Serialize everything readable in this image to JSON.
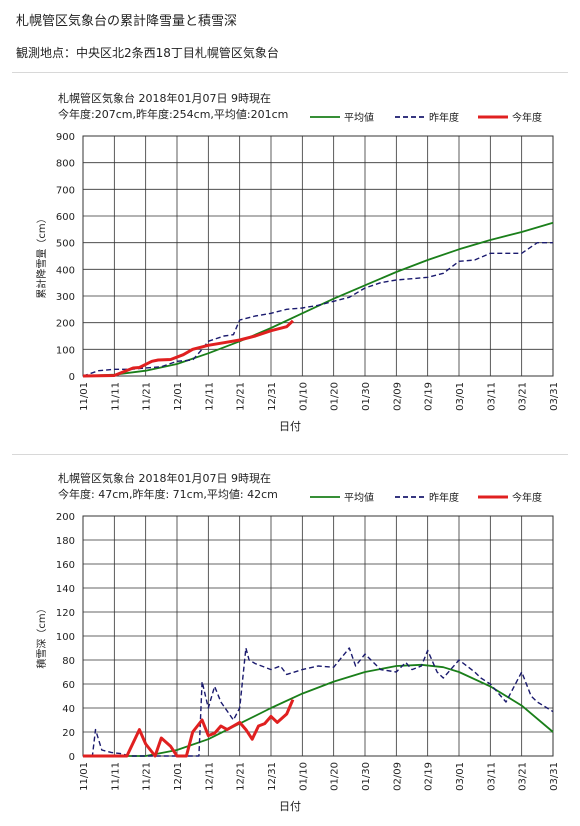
{
  "page": {
    "title": "札幌管区気象台の累計降雪量と積雪深",
    "subtitle": "観測地点：中央区北2条西18丁目札幌管区気象台"
  },
  "chart_data": [
    {
      "type": "line",
      "station_line": "札幌管区気象台 2018年01月07日 9時現在",
      "summary_line": "今年度:207cm,昨年度:254cm,平均値:201cm",
      "xlabel": "日付",
      "ylabel": "累計降雪量（cm）",
      "ylim": [
        0,
        900
      ],
      "yticks": [
        "0",
        "100",
        "200",
        "300",
        "400",
        "500",
        "600",
        "700",
        "800",
        "900"
      ],
      "xticks": [
        "11/01",
        "11/11",
        "11/21",
        "12/01",
        "12/11",
        "12/21",
        "12/31",
        "01/10",
        "01/20",
        "01/30",
        "02/09",
        "02/19",
        "03/01",
        "03/11",
        "03/21",
        "03/31"
      ],
      "grid": true,
      "legend": "top-right",
      "series": [
        {
          "name": "平均値",
          "color": "#1a7f1a",
          "style": "solid",
          "x": [
            0,
            10,
            20,
            30,
            40,
            50,
            60,
            70,
            80,
            90,
            100,
            110,
            120,
            130,
            140,
            150
          ],
          "values": [
            0,
            5,
            20,
            45,
            85,
            130,
            180,
            235,
            290,
            340,
            390,
            435,
            475,
            510,
            540,
            575
          ]
        },
        {
          "name": "昨年度",
          "color": "#1a1a6e",
          "style": "dashed",
          "x": [
            0,
            5,
            10,
            15,
            20,
            25,
            30,
            35,
            38,
            40,
            45,
            48,
            50,
            55,
            60,
            65,
            70,
            75,
            80,
            85,
            90,
            95,
            100,
            105,
            110,
            115,
            120,
            125,
            130,
            135,
            140,
            145,
            150
          ],
          "values": [
            0,
            20,
            25,
            25,
            30,
            35,
            55,
            60,
            100,
            130,
            150,
            155,
            210,
            225,
            235,
            250,
            255,
            265,
            280,
            295,
            330,
            350,
            360,
            365,
            370,
            385,
            430,
            435,
            460,
            460,
            460,
            500,
            500
          ]
        },
        {
          "name": "今年度",
          "color": "#e02020",
          "style": "solid",
          "x": [
            0,
            10,
            16,
            18,
            22,
            24,
            28,
            32,
            35,
            40,
            45,
            50,
            55,
            60,
            65,
            67
          ],
          "values": [
            0,
            2,
            30,
            32,
            55,
            60,
            62,
            80,
            100,
            115,
            125,
            135,
            150,
            170,
            185,
            207
          ]
        }
      ]
    },
    {
      "type": "line",
      "station_line": "札幌管区気象台 2018年01月07日 9時現在",
      "summary_line": "今年度: 47cm,昨年度: 71cm,平均値: 42cm",
      "xlabel": "日付",
      "ylabel": "積雪深（cm）",
      "ylim": [
        0,
        200
      ],
      "yticks": [
        "0",
        "20",
        "40",
        "60",
        "80",
        "100",
        "120",
        "140",
        "160",
        "180",
        "200"
      ],
      "xticks": [
        "11/01",
        "11/11",
        "11/21",
        "12/01",
        "12/11",
        "12/21",
        "12/31",
        "01/10",
        "01/20",
        "01/30",
        "02/09",
        "02/19",
        "03/01",
        "03/11",
        "03/21",
        "03/31"
      ],
      "grid": true,
      "legend": "top-right",
      "series": [
        {
          "name": "平均値",
          "color": "#1a7f1a",
          "style": "solid",
          "x": [
            0,
            20,
            30,
            40,
            50,
            60,
            70,
            80,
            90,
            100,
            108,
            115,
            120,
            130,
            140,
            150
          ],
          "values": [
            0,
            0,
            5,
            14,
            27,
            40,
            52,
            62,
            70,
            75,
            76,
            74,
            70,
            58,
            42,
            20
          ]
        },
        {
          "name": "昨年度",
          "color": "#1a1a6e",
          "style": "dashed",
          "x": [
            0,
            3,
            4,
            6,
            9,
            12,
            15,
            20,
            30,
            35,
            37,
            38,
            40,
            42,
            44,
            48,
            50,
            52,
            53,
            55,
            60,
            63,
            65,
            70,
            75,
            80,
            85,
            87,
            90,
            95,
            100,
            103,
            105,
            108,
            110,
            113,
            115,
            120,
            125,
            127,
            130,
            135,
            140,
            143,
            145,
            150
          ],
          "values": [
            0,
            0,
            22,
            5,
            3,
            2,
            0,
            0,
            0,
            0,
            0,
            62,
            40,
            58,
            45,
            30,
            40,
            90,
            80,
            77,
            72,
            75,
            68,
            72,
            75,
            74,
            90,
            75,
            85,
            72,
            70,
            78,
            72,
            75,
            88,
            70,
            65,
            80,
            70,
            65,
            60,
            45,
            70,
            50,
            45,
            37
          ]
        },
        {
          "name": "今年度",
          "color": "#e02020",
          "style": "solid",
          "x": [
            0,
            14,
            18,
            20,
            23,
            25,
            28,
            30,
            33,
            35,
            38,
            40,
            42,
            44,
            46,
            48,
            50,
            52,
            54,
            56,
            58,
            60,
            62,
            65,
            67
          ],
          "values": [
            0,
            0,
            22,
            10,
            0,
            15,
            8,
            0,
            0,
            20,
            30,
            17,
            19,
            25,
            22,
            25,
            28,
            22,
            14,
            25,
            27,
            33,
            28,
            35,
            47
          ]
        }
      ]
    }
  ]
}
